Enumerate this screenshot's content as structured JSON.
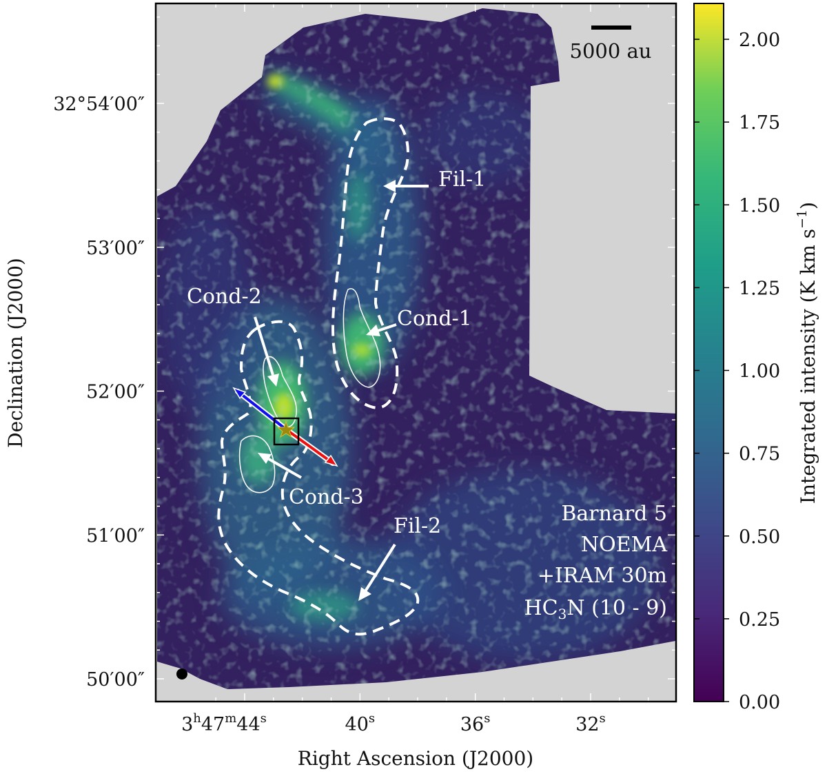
{
  "chart_data": {
    "type": "heatmap",
    "title": "",
    "xlabel": "Right Ascension (J2000)",
    "ylabel": "Declination (J2000)",
    "x_ticks": [
      {
        "label": "3h47m44s",
        "h": "3",
        "m": "47",
        "s": "44",
        "value_s": 44
      },
      {
        "label": "40s",
        "s": "40",
        "value_s": 40
      },
      {
        "label": "36s",
        "s": "36",
        "value_s": 36
      },
      {
        "label": "32s",
        "s": "32",
        "value_s": 32
      }
    ],
    "y_ticks": [
      {
        "label": "32°54′00″",
        "value_arcmin": 54
      },
      {
        "label": "53′00″",
        "value_arcmin": 53
      },
      {
        "label": "52′00″",
        "value_arcmin": 52
      },
      {
        "label": "51′00″",
        "value_arcmin": 51
      },
      {
        "label": "50′00″",
        "value_arcmin": 50
      }
    ],
    "colorbar": {
      "label": "Integrated intensity (K km s−1)",
      "colormap": "viridis",
      "range": [
        0.0,
        2.12
      ],
      "ticks": [
        "0.00",
        "0.25",
        "0.50",
        "0.75",
        "1.00",
        "1.25",
        "1.50",
        "1.75",
        "2.00"
      ],
      "tick_values": [
        0.0,
        0.25,
        0.5,
        0.75,
        1.0,
        1.25,
        1.5,
        1.75,
        2.0
      ]
    },
    "scale_bar_label": "5000 au",
    "annotations": [
      "Fil-1",
      "Fil-2",
      "Cond-1",
      "Cond-2",
      "Cond-3"
    ],
    "info_lines": [
      "Barnard 5",
      "NOEMA",
      "+IRAM 30m",
      "HC3N (10 - 9)"
    ],
    "colors": {
      "no_data": "#d3d3d3",
      "outflow_blue": "#1010ee",
      "outflow_red": "#ee1010",
      "contours": "#ffffff",
      "protostar": "#9a8a10"
    },
    "grid": false
  }
}
